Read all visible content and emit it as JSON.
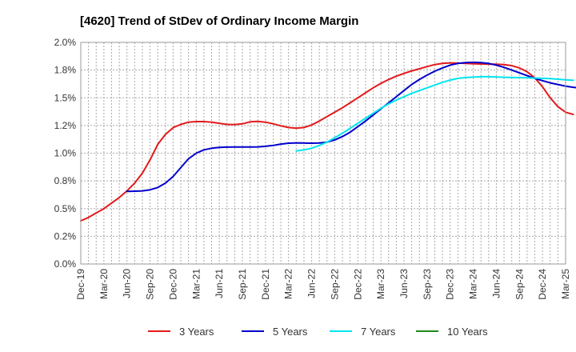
{
  "chart_data": {
    "type": "line",
    "title": "[4620]  Trend of StDev of Ordinary Income Margin",
    "xlabel": "",
    "ylabel": "",
    "x_ticks": [
      "Dec-19",
      "Mar-20",
      "Jun-20",
      "Sep-20",
      "Dec-20",
      "Mar-21",
      "Jun-21",
      "Sep-21",
      "Dec-21",
      "Mar-22",
      "Jun-22",
      "Sep-22",
      "Dec-22",
      "Mar-23",
      "Jun-23",
      "Sep-23",
      "Dec-23",
      "Mar-24",
      "Jun-24",
      "Sep-24",
      "Dec-24",
      "Mar-25"
    ],
    "y_ticks": [
      "0.0%",
      "0.2%",
      "0.5%",
      "0.8%",
      "1.0%",
      "1.2%",
      "1.5%",
      "1.8%",
      "2.0%"
    ],
    "ylim": [
      0,
      2.0
    ],
    "grid": true,
    "legend_position": "bottom",
    "series": [
      {
        "name": "3 Years",
        "color": "#e31a1c",
        "start_index": 0,
        "values": [
          0.39,
          0.42,
          0.46,
          0.5,
          0.55,
          0.6,
          0.66,
          0.73,
          0.82,
          0.94,
          1.08,
          1.17,
          1.23,
          1.26,
          1.28,
          1.285,
          1.285,
          1.28,
          1.27,
          1.26,
          1.258,
          1.265,
          1.283,
          1.287,
          1.28,
          1.265,
          1.247,
          1.232,
          1.225,
          1.232,
          1.255,
          1.29,
          1.33,
          1.37,
          1.41,
          1.455,
          1.5,
          1.545,
          1.59,
          1.63,
          1.665,
          1.695,
          1.72,
          1.743,
          1.762,
          1.782,
          1.8,
          1.81,
          1.815,
          1.813,
          1.81,
          1.807,
          1.805,
          1.803,
          1.803,
          1.8,
          1.79,
          1.77,
          1.735,
          1.68,
          1.6,
          1.5,
          1.42,
          1.37,
          1.35
        ]
      },
      {
        "name": "5 Years",
        "color": "#0000cc",
        "start_index": 6,
        "values": [
          0.655,
          0.657,
          0.66,
          0.67,
          0.69,
          0.73,
          0.79,
          0.87,
          0.95,
          1.0,
          1.03,
          1.045,
          1.052,
          1.055,
          1.056,
          1.056,
          1.056,
          1.057,
          1.062,
          1.07,
          1.082,
          1.09,
          1.093,
          1.092,
          1.09,
          1.092,
          1.1,
          1.12,
          1.15,
          1.19,
          1.24,
          1.29,
          1.345,
          1.4,
          1.455,
          1.51,
          1.565,
          1.62,
          1.665,
          1.705,
          1.74,
          1.77,
          1.795,
          1.81,
          1.818,
          1.82,
          1.818,
          1.81,
          1.795,
          1.775,
          1.75,
          1.725,
          1.7,
          1.675,
          1.655,
          1.635,
          1.62,
          1.605,
          1.595,
          1.588,
          1.585
        ]
      },
      {
        "name": "7 Years",
        "color": "#00e5ee",
        "start_index": 28,
        "values": [
          1.02,
          1.03,
          1.045,
          1.07,
          1.1,
          1.14,
          1.18,
          1.225,
          1.27,
          1.315,
          1.36,
          1.405,
          1.445,
          1.48,
          1.51,
          1.54,
          1.565,
          1.59,
          1.615,
          1.64,
          1.66,
          1.675,
          1.683,
          1.687,
          1.69,
          1.69,
          1.688,
          1.685,
          1.683,
          1.682,
          1.68,
          1.678,
          1.676,
          1.673,
          1.668,
          1.663,
          1.658
        ]
      },
      {
        "name": "10 Years",
        "color": "#1a8c1a",
        "start_index": 0,
        "values": []
      }
    ]
  }
}
